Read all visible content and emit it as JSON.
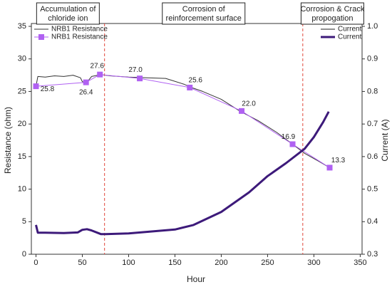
{
  "chart_data": {
    "type": "line",
    "x_label": "Hour",
    "y_label": "Resistance (ohm)",
    "y2_label": "Current (A)",
    "xlim": [
      -5,
      352
    ],
    "xticks": [
      0,
      50,
      100,
      150,
      200,
      250,
      300,
      350
    ],
    "ylim": [
      0,
      35
    ],
    "yticks": [
      0,
      5,
      10,
      15,
      20,
      25,
      30,
      35
    ],
    "y2lim": [
      0.3,
      1.0
    ],
    "y2ticks": [
      0.3,
      0.4,
      0.5,
      0.6,
      0.7,
      0.8,
      0.9,
      {
        "value": 1.0,
        "label": "1.0"
      }
    ],
    "vlines": [
      74,
      288
    ],
    "vline_color": "#e0463a",
    "phases": [
      {
        "lines": [
          "Accumulation of",
          "chloride ion"
        ]
      },
      {
        "lines": [
          "Corrosion of",
          "reinforcement surface"
        ]
      },
      {
        "lines": [
          "Corrosion & Crack",
          "propogation"
        ]
      }
    ],
    "legend_y": "upper left",
    "legend_y2": "upper right",
    "series": [
      {
        "name": "NRB1 Resistance",
        "color": "#333333",
        "line_width": 1,
        "x": [
          0,
          2,
          10,
          20,
          30,
          40,
          48,
          50,
          55,
          60,
          70,
          80,
          100,
          120,
          140,
          160,
          170,
          180,
          200,
          220,
          240,
          260,
          277,
          290,
          305,
          317
        ],
        "values": [
          25.8,
          27.3,
          27.2,
          27.4,
          27.3,
          27.5,
          27.1,
          26.5,
          26.4,
          27.3,
          27.6,
          27.4,
          27.2,
          27.1,
          27.0,
          26.1,
          25.5,
          25.0,
          23.8,
          22.0,
          20.5,
          18.7,
          16.9,
          15.5,
          14.3,
          13.3
        ]
      },
      {
        "name": "NRB1 Resistance",
        "color": "#b061f2",
        "line_width": 1,
        "marker": "square",
        "x": [
          0,
          54,
          69,
          112,
          166,
          222,
          277,
          317
        ],
        "values": [
          25.8,
          26.4,
          27.6,
          27.0,
          25.6,
          22.0,
          16.9,
          13.3
        ],
        "value_labels": [
          "25.8",
          "26.4",
          "27.6",
          "27.0",
          "25.6",
          "22.0",
          "16.9",
          "13.3"
        ]
      },
      {
        "name": "Current",
        "color": "#222222",
        "axis": "y2",
        "line_width": 1,
        "x": [
          0,
          2,
          10,
          30,
          45,
          50,
          55,
          60,
          70,
          75,
          100,
          150,
          170,
          200,
          230,
          250,
          270,
          290,
          300,
          310,
          316
        ],
        "values": [
          0.39,
          0.366,
          0.366,
          0.365,
          0.367,
          0.375,
          0.377,
          0.373,
          0.362,
          0.362,
          0.364,
          0.376,
          0.39,
          0.43,
          0.49,
          0.54,
          0.58,
          0.624,
          0.66,
          0.706,
          0.738
        ]
      },
      {
        "name": "Current",
        "color": "#3d1a7a",
        "axis": "y2",
        "line_width": 3,
        "x": [
          0,
          2,
          10,
          30,
          45,
          50,
          55,
          60,
          70,
          75,
          100,
          150,
          170,
          200,
          230,
          250,
          270,
          290,
          300,
          310,
          316
        ],
        "values": [
          0.39,
          0.366,
          0.366,
          0.365,
          0.367,
          0.375,
          0.377,
          0.373,
          0.362,
          0.362,
          0.364,
          0.376,
          0.39,
          0.43,
          0.49,
          0.54,
          0.58,
          0.624,
          0.66,
          0.706,
          0.738
        ]
      }
    ]
  }
}
